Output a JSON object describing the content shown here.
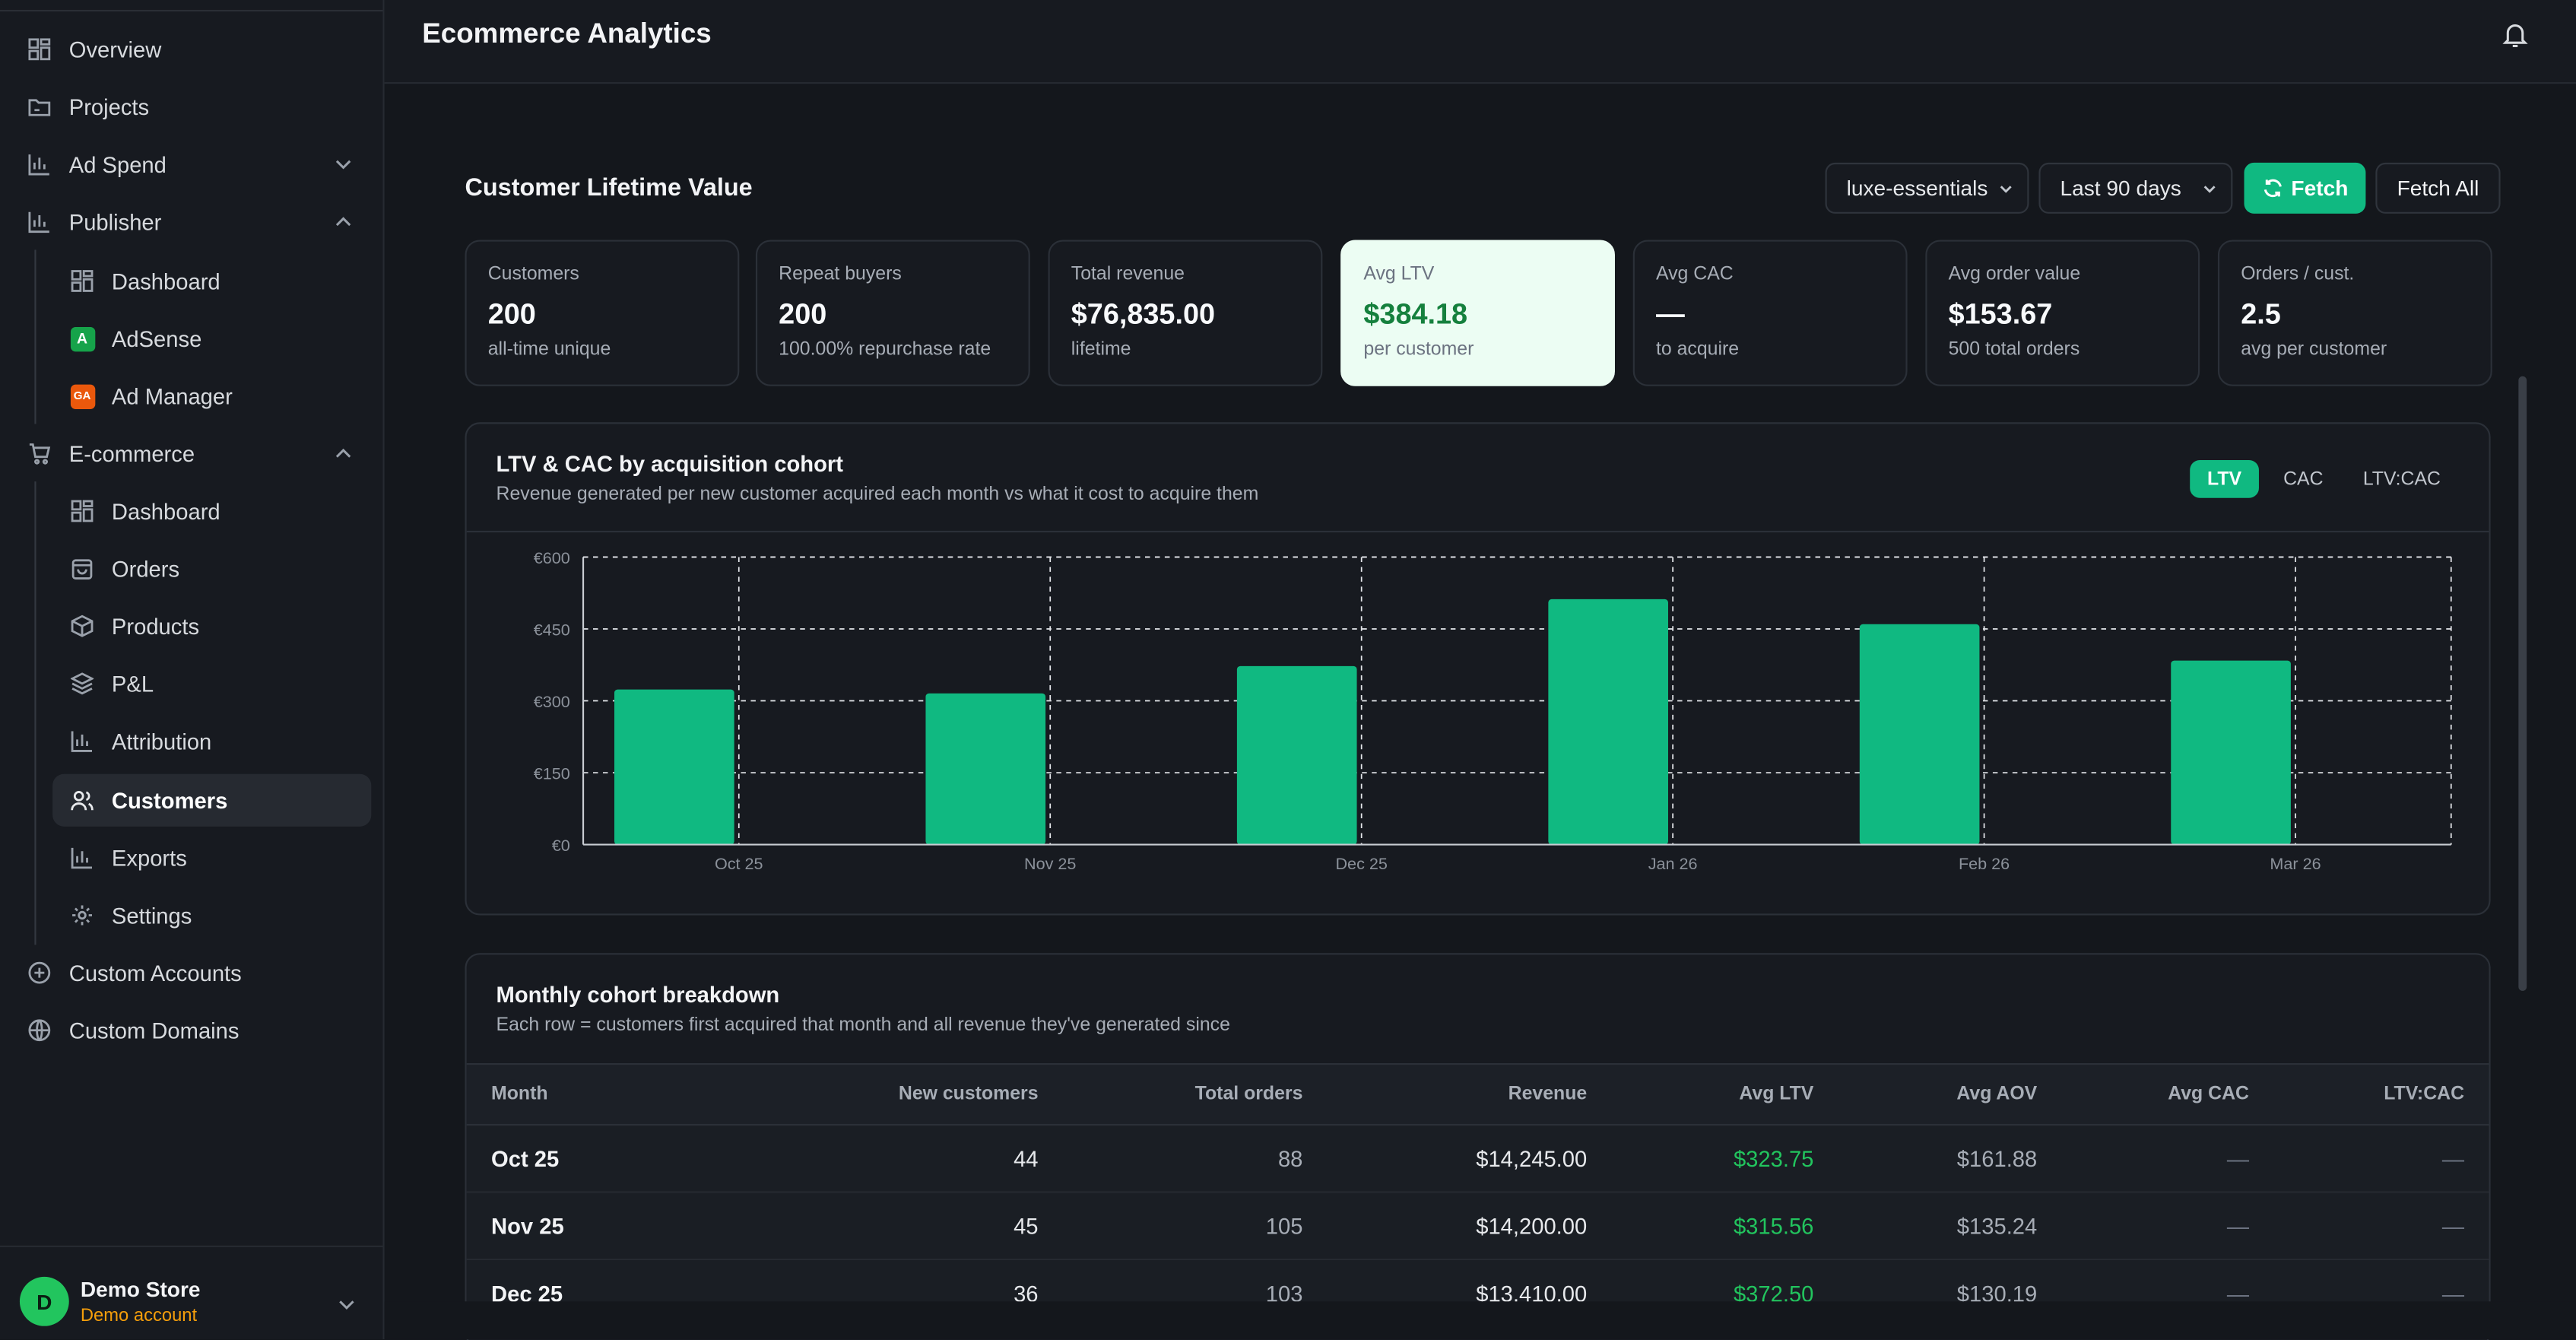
{
  "app": {
    "title": "Ecommerce Analytics"
  },
  "sidebar": {
    "items": [
      {
        "label": "Overview",
        "icon": "grid-icon"
      },
      {
        "label": "Projects",
        "icon": "folder-icon"
      },
      {
        "label": "Ad Spend",
        "icon": "bar-chart-icon",
        "expanded": false
      },
      {
        "label": "Publisher",
        "icon": "bar-chart-icon",
        "expanded": true
      },
      {
        "label": "Dashboard",
        "icon": "grid-icon"
      },
      {
        "label": "AdSense",
        "icon": "adsense-icon",
        "badge": "A"
      },
      {
        "label": "Ad Manager",
        "icon": "ad-manager-icon",
        "badge": "GA"
      },
      {
        "label": "E-commerce",
        "icon": "cart-icon",
        "expanded": true
      },
      {
        "label": "Dashboard",
        "icon": "grid-icon"
      },
      {
        "label": "Orders",
        "icon": "bag-icon"
      },
      {
        "label": "Products",
        "icon": "box-icon"
      },
      {
        "label": "P&L",
        "icon": "layers-icon"
      },
      {
        "label": "Attribution",
        "icon": "bar-chart-icon"
      },
      {
        "label": "Customers",
        "icon": "users-icon",
        "active": true
      },
      {
        "label": "Exports",
        "icon": "bar-chart-icon"
      },
      {
        "label": "Settings",
        "icon": "gear-icon"
      },
      {
        "label": "Custom Accounts",
        "icon": "plus-circle-icon"
      },
      {
        "label": "Custom Domains",
        "icon": "globe-icon"
      }
    ],
    "user": {
      "initial": "D",
      "name": "Demo Store",
      "subtitle": "Demo account"
    }
  },
  "main": {
    "title": "Customer Lifetime Value",
    "store_select": "luxe-essentials",
    "range_select": "Last 90 days",
    "fetch_label": "Fetch",
    "fetch_all_label": "Fetch All",
    "cards": [
      {
        "label": "Customers",
        "value": "200",
        "sub": "all-time unique"
      },
      {
        "label": "Repeat buyers",
        "value": "200",
        "sub": "100.00% repurchase rate"
      },
      {
        "label": "Total revenue",
        "value": "$76,835.00",
        "sub": "lifetime"
      },
      {
        "label": "Avg LTV",
        "value": "$384.18",
        "sub": "per customer"
      },
      {
        "label": "Avg CAC",
        "value": "—",
        "sub": "to acquire"
      },
      {
        "label": "Avg order value",
        "value": "$153.67",
        "sub": "500 total orders"
      },
      {
        "label": "Orders / cust.",
        "value": "2.5",
        "sub": "avg per customer"
      }
    ],
    "cohort_chart": {
      "title": "LTV & CAC by acquisition cohort",
      "subtitle": "Revenue generated per new customer acquired each month vs what it cost to acquire them",
      "tabs": [
        "LTV",
        "CAC",
        "LTV:CAC"
      ],
      "active_tab": "LTV"
    },
    "breakdown": {
      "title": "Monthly cohort breakdown",
      "subtitle": "Each row = customers first acquired that month and all revenue they've generated since",
      "columns": [
        "Month",
        "New customers",
        "Total orders",
        "Revenue",
        "Avg LTV",
        "Avg AOV",
        "Avg CAC",
        "LTV:CAC"
      ],
      "rows": [
        [
          "Oct 25",
          "44",
          "88",
          "$14,245.00",
          "$323.75",
          "$161.88",
          "—",
          "—"
        ],
        [
          "Nov 25",
          "45",
          "105",
          "$14,200.00",
          "$315.56",
          "$135.24",
          "—",
          "—"
        ],
        [
          "Dec 25",
          "36",
          "103",
          "$13,410.00",
          "$372.50",
          "$130.19",
          "—",
          "—"
        ]
      ]
    }
  },
  "chart_data": {
    "type": "bar",
    "categories": [
      "Oct 25",
      "Nov 25",
      "Dec 25",
      "Jan 26",
      "Feb 26",
      "Mar 26"
    ],
    "series": [
      {
        "values": [
          323.75,
          315.56,
          372.5,
          512,
          460,
          384
        ]
      }
    ],
    "yticks": [
      "€0",
      "€150",
      "€300",
      "€450",
      "€600"
    ],
    "ylim": [
      0,
      600
    ],
    "grid": true,
    "colors": {
      "bar": "#10b981"
    }
  }
}
